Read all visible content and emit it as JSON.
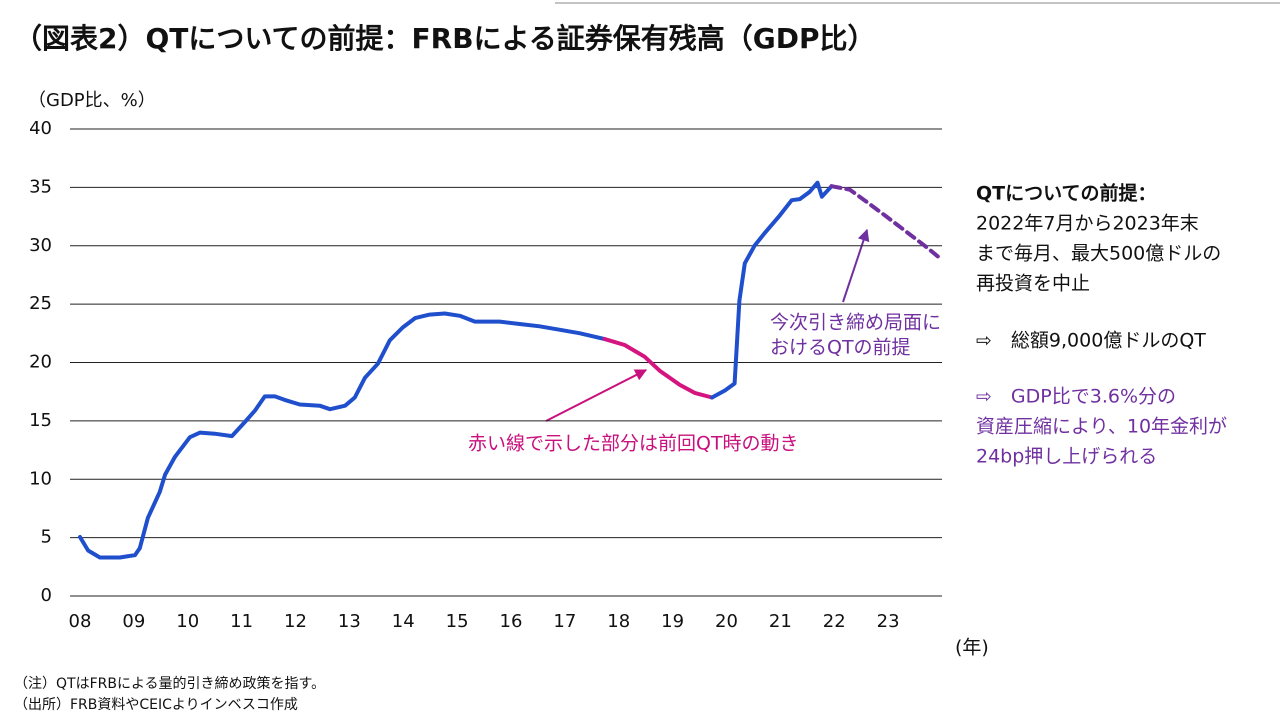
{
  "chart_data": {
    "type": "line",
    "title": "（図表2）QTについての前提：FRBによる証券保有残高（GDP比）",
    "y_label": "（GDP比、%）",
    "x_label": "(年)",
    "xlim": [
      2008,
      2024
    ],
    "xticks": [
      {
        "value": 2008,
        "label": "08"
      },
      {
        "value": 2009,
        "label": "09"
      },
      {
        "value": 2010,
        "label": "10"
      },
      {
        "value": 2011,
        "label": "11"
      },
      {
        "value": 2012,
        "label": "12"
      },
      {
        "value": 2013,
        "label": "13"
      },
      {
        "value": 2014,
        "label": "14"
      },
      {
        "value": 2015,
        "label": "15"
      },
      {
        "value": 2016,
        "label": "16"
      },
      {
        "value": 2017,
        "label": "17"
      },
      {
        "value": 2018,
        "label": "18"
      },
      {
        "value": 2019,
        "label": "19"
      },
      {
        "value": 2020,
        "label": "20"
      },
      {
        "value": 2021,
        "label": "21"
      },
      {
        "value": 2022,
        "label": "22"
      },
      {
        "value": 2023,
        "label": "23"
      }
    ],
    "ylim": [
      0,
      40
    ],
    "yticks": [
      0,
      5,
      10,
      15,
      20,
      25,
      30,
      35,
      40
    ],
    "grid": true,
    "series": [
      {
        "color": "#1f4fcc",
        "dashed": false,
        "x": [
          2008.0,
          2008.15,
          2008.37,
          2008.74,
          2009.02,
          2009.11,
          2009.26,
          2009.48,
          2009.58,
          2009.76,
          2010.04,
          2010.23,
          2010.5,
          2010.82,
          2011.06,
          2011.25,
          2011.43,
          2011.62,
          2011.8,
          2012.08,
          2012.45,
          2012.64,
          2012.92,
          2013.1,
          2013.29,
          2013.53,
          2013.75,
          2013.99,
          2014.22,
          2014.49,
          2014.77,
          2015.05,
          2015.33,
          2015.79,
          2016.16,
          2016.53,
          2016.91,
          2017.28,
          2017.74
        ],
        "values": [
          5.05,
          3.9,
          3.3,
          3.3,
          3.5,
          4.1,
          6.7,
          8.9,
          10.4,
          11.9,
          13.6,
          14.0,
          13.9,
          13.7,
          14.9,
          15.9,
          17.1,
          17.1,
          16.8,
          16.4,
          16.3,
          16.0,
          16.3,
          17.0,
          18.7,
          19.9,
          21.9,
          23.0,
          23.8,
          24.1,
          24.2,
          24.0,
          23.5,
          23.5,
          23.3,
          23.1,
          22.8,
          22.5,
          22.0
        ]
      },
      {
        "color": "#d4147f",
        "dashed": false,
        "x": [
          2017.74,
          2018.11,
          2018.48,
          2018.76,
          2019.13,
          2019.41,
          2019.73
        ],
        "values": [
          22.0,
          21.5,
          20.5,
          19.3,
          18.1,
          17.4,
          17.0
        ]
      },
      {
        "color": "#1f4fcc",
        "dashed": false,
        "x": [
          2019.73,
          2019.97,
          2020.15,
          2020.24,
          2020.34,
          2020.52,
          2020.71,
          2020.99,
          2021.21,
          2021.36,
          2021.54,
          2021.69,
          2021.77,
          2021.95
        ],
        "values": [
          17.0,
          17.6,
          18.2,
          25.3,
          28.5,
          30.0,
          31.1,
          32.6,
          33.9,
          34.0,
          34.6,
          35.4,
          34.2,
          35.1
        ]
      },
      {
        "color": "#7030a0",
        "dashed": true,
        "x": [
          2021.95,
          2022.29,
          2022.56,
          2022.94,
          2023.31,
          2023.68,
          2024.0
        ],
        "values": [
          35.1,
          34.8,
          33.9,
          32.6,
          31.3,
          30.0,
          28.8
        ]
      }
    ],
    "annotations": [
      {
        "lines": [
          "赤い線で示した部分は前回QT時の動き"
        ],
        "color": "#c8107e"
      },
      {
        "lines": [
          "今次引き締め局面に",
          "おけるQTの前提"
        ],
        "color": "#7030a0"
      }
    ]
  },
  "side_panel": {
    "heading": "QTについての前提：",
    "body": [
      "2022年7月から2023年末",
      "まで毎月、最大500億ドルの",
      "再投資を中止"
    ],
    "point1": "⇨　総額9,000億ドルのQT",
    "point2": [
      "⇨　GDP比で3.6%分の",
      "資産圧縮により、10年金利が",
      "24bp押し上げられる"
    ]
  },
  "notes": [
    "（注）QTはFRBによる量的引き締め政策を指す。",
    "（出所）FRB資料やCEICよりインベスコ作成"
  ]
}
